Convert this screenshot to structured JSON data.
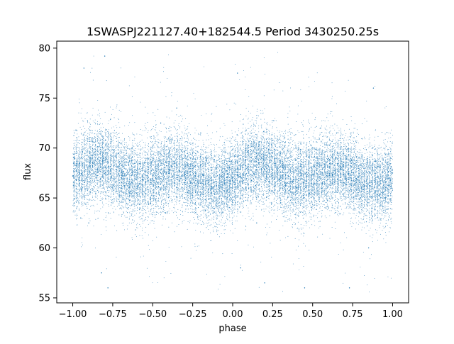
{
  "chart_data": {
    "type": "scatter",
    "title": "1SWASPJ221127.40+182544.5 Period 3430250.25s",
    "xlabel": "phase",
    "ylabel": "flux",
    "xlim": [
      -1.1,
      1.1
    ],
    "ylim": [
      54.5,
      80.7
    ],
    "x_ticks": [
      -1.0,
      -0.75,
      -0.5,
      -0.25,
      0.0,
      0.25,
      0.5,
      0.75,
      1.0
    ],
    "x_tick_labels": [
      "−1.00",
      "−0.75",
      "−0.50",
      "−0.25",
      "0.00",
      "0.25",
      "0.50",
      "0.75",
      "1.00"
    ],
    "y_ticks": [
      55,
      60,
      65,
      70,
      75,
      80
    ],
    "y_tick_labels": [
      "55",
      "60",
      "65",
      "70",
      "75",
      "80"
    ],
    "grid": false,
    "legend": "none",
    "marker_color": "#1f77b4",
    "series": [
      {
        "points": [
          [
            -1.0,
            67.2
          ],
          [
            -0.98,
            71.8
          ],
          [
            -0.95,
            63.0
          ],
          [
            -0.93,
            78.0
          ],
          [
            -0.9,
            62.5
          ],
          [
            -0.85,
            67.0
          ],
          [
            -0.82,
            57.5
          ],
          [
            -0.8,
            79.2
          ],
          [
            -0.78,
            56.0
          ],
          [
            -0.75,
            66.0
          ],
          [
            -0.7,
            64.0
          ],
          [
            -0.65,
            69.0
          ],
          [
            -0.6,
            65.5
          ],
          [
            -0.55,
            68.5
          ],
          [
            -0.5,
            70.0
          ],
          [
            -0.45,
            72.5
          ],
          [
            -0.42,
            63.5
          ],
          [
            -0.4,
            71.0
          ],
          [
            -0.35,
            74.0
          ],
          [
            -0.3,
            65.0
          ],
          [
            -0.25,
            69.5
          ],
          [
            -0.2,
            71.5
          ],
          [
            -0.15,
            64.0
          ],
          [
            -0.1,
            68.0
          ],
          [
            -0.05,
            66.5
          ],
          [
            0.0,
            67.0
          ],
          [
            0.03,
            77.5
          ],
          [
            0.05,
            58.0
          ],
          [
            0.1,
            66.0
          ],
          [
            0.15,
            62.5
          ],
          [
            0.2,
            56.5
          ],
          [
            0.25,
            67.5
          ],
          [
            0.3,
            64.5
          ],
          [
            0.35,
            69.0
          ],
          [
            0.4,
            66.0
          ],
          [
            0.45,
            56.0
          ],
          [
            0.5,
            70.0
          ],
          [
            0.55,
            72.0
          ],
          [
            0.6,
            64.0
          ],
          [
            0.65,
            71.5
          ],
          [
            0.7,
            66.5
          ],
          [
            0.73,
            56.0
          ],
          [
            0.75,
            69.0
          ],
          [
            0.8,
            65.0
          ],
          [
            0.85,
            60.0
          ],
          [
            0.88,
            76.0
          ],
          [
            0.9,
            68.0
          ],
          [
            0.95,
            65.0
          ],
          [
            1.0,
            67.5
          ]
        ]
      }
    ]
  }
}
